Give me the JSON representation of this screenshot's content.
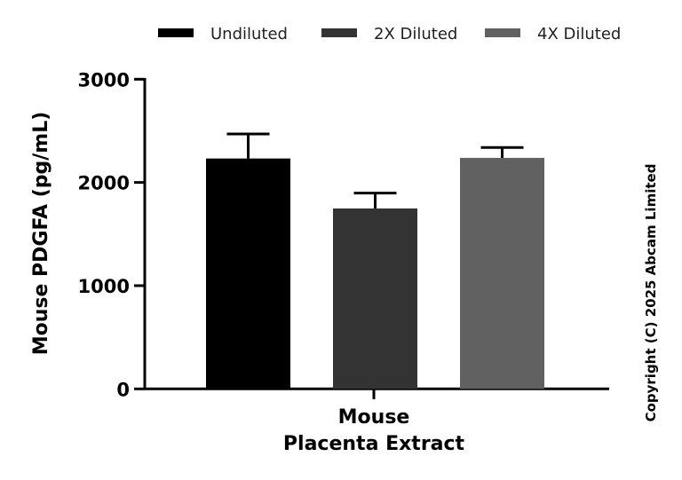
{
  "chart_data": {
    "type": "bar",
    "title": "",
    "xlabel": [
      "Mouse",
      "Placenta Extract"
    ],
    "ylabel": "Mouse PDGFA (pg/mL)",
    "ylim": [
      0,
      3000
    ],
    "yticks": [
      "0",
      "1000",
      "2000",
      "3000"
    ],
    "grid": false,
    "legend_placement": "top",
    "categories": [
      "Mouse Placenta Extract"
    ],
    "series": [
      {
        "name": "Undiluted",
        "values": [
          2232
        ],
        "error": [
          238
        ],
        "color": "#000000"
      },
      {
        "name": "2X Diluted",
        "values": [
          1748
        ],
        "error": [
          149
        ],
        "color": "#333333"
      },
      {
        "name": "4X Diluted",
        "values": [
          2238
        ],
        "error": [
          101
        ],
        "color": "#616161"
      }
    ]
  },
  "copyright": "Copyright (C) 2025 Abcam Limited"
}
